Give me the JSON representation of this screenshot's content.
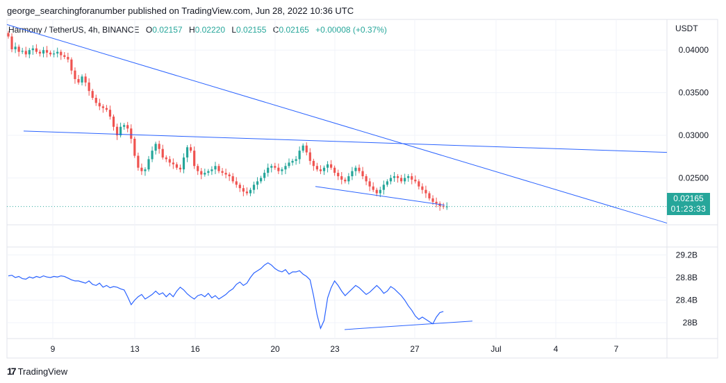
{
  "header": {
    "published": "george_searchingforanumber published on TradingView.com, Jun 28, 2022 10:36 UTC"
  },
  "legend": {
    "symbol": "Harmony / TetherUS, 4h, BINANCE",
    "o_label": "O",
    "o_value": "0.02157",
    "h_label": "H",
    "h_value": "0.02220",
    "l_label": "L",
    "l_value": "0.02155",
    "c_label": "C",
    "c_value": "0.02165",
    "change": "+0.00008 (+0.37%)"
  },
  "price_badge": {
    "price": "0.02165",
    "countdown": "01:23:33"
  },
  "footer": {
    "brand": "TradingView"
  },
  "colors": {
    "up": "#26a69a",
    "down": "#ef5350",
    "line": "#2962ff",
    "grid": "#f0f3fa"
  },
  "chart_data": [
    {
      "type": "candlestick",
      "title": "Harmony / TetherUS, 4h, BINANCE",
      "y_axis_unit": "USDT",
      "y_ticks": [
        "0.04000",
        "0.03500",
        "0.03000",
        "0.02500"
      ],
      "ylim": [
        0.0195,
        0.0436
      ],
      "x_ticks": [
        "9",
        "13",
        "16",
        "20",
        "23",
        "27",
        "Jul",
        "4",
        "7"
      ],
      "current_price": 0.02165,
      "closes": [
        0.0416,
        0.0401,
        0.0404,
        0.0398,
        0.0399,
        0.0395,
        0.04,
        0.0402,
        0.0398,
        0.0396,
        0.04,
        0.0397,
        0.0395,
        0.0396,
        0.0398,
        0.0394,
        0.0392,
        0.0389,
        0.0376,
        0.0366,
        0.0362,
        0.0369,
        0.0362,
        0.0352,
        0.0344,
        0.0338,
        0.0334,
        0.0332,
        0.033,
        0.0322,
        0.031,
        0.03,
        0.031,
        0.0312,
        0.0308,
        0.0296,
        0.0276,
        0.0262,
        0.0258,
        0.026,
        0.0272,
        0.0282,
        0.029,
        0.0284,
        0.0274,
        0.0272,
        0.0268,
        0.0266,
        0.0262,
        0.026,
        0.0274,
        0.0286,
        0.0282,
        0.0264,
        0.0258,
        0.0254,
        0.0256,
        0.0258,
        0.026,
        0.0264,
        0.0258,
        0.0256,
        0.0254,
        0.0252,
        0.0246,
        0.0242,
        0.0238,
        0.0234,
        0.0232,
        0.0236,
        0.0242,
        0.0246,
        0.025,
        0.0256,
        0.0262,
        0.0264,
        0.0262,
        0.0258,
        0.026,
        0.0264,
        0.0268,
        0.027,
        0.0272,
        0.0282,
        0.0288,
        0.028,
        0.027,
        0.0264,
        0.026,
        0.0258,
        0.0262,
        0.0266,
        0.0262,
        0.0256,
        0.0252,
        0.0248,
        0.0246,
        0.0252,
        0.0258,
        0.0262,
        0.0258,
        0.0252,
        0.0246,
        0.024,
        0.0236,
        0.0232,
        0.0236,
        0.0242,
        0.0246,
        0.025,
        0.0252,
        0.025,
        0.0246,
        0.025,
        0.0252,
        0.0248,
        0.0246,
        0.024,
        0.0236,
        0.0232,
        0.0226,
        0.0222,
        0.022,
        0.0217,
        0.0216,
        0.02165
      ],
      "trendlines_price": [
        {
          "from": [
            0,
            0.043
          ],
          "to": [
            1,
            0.0197
          ]
        },
        {
          "from": [
            0,
            0.0305
          ],
          "to": [
            1,
            0.028
          ]
        },
        {
          "from": [
            0,
            0.024
          ],
          "to": [
            1,
            0.0218
          ]
        }
      ]
    },
    {
      "type": "line",
      "title": "",
      "y_ticks": [
        "29.2B",
        "28.8B",
        "28.4B",
        "28B"
      ],
      "ylim": [
        27.72,
        29.34
      ],
      "values": [
        28.83,
        28.84,
        28.8,
        28.82,
        28.78,
        28.77,
        28.81,
        28.79,
        28.82,
        28.8,
        28.83,
        28.81,
        28.8,
        28.82,
        28.81,
        28.83,
        28.82,
        28.79,
        28.76,
        28.74,
        28.74,
        28.72,
        28.7,
        28.74,
        28.68,
        28.66,
        28.7,
        28.63,
        28.66,
        28.62,
        28.64,
        28.63,
        28.6,
        28.58,
        28.46,
        28.32,
        28.4,
        28.46,
        28.5,
        28.42,
        28.46,
        28.5,
        28.56,
        28.5,
        28.53,
        28.46,
        28.52,
        28.46,
        28.56,
        28.63,
        28.58,
        28.51,
        28.46,
        28.42,
        28.48,
        28.5,
        28.46,
        28.52,
        28.44,
        28.48,
        28.42,
        28.46,
        28.5,
        28.56,
        28.6,
        28.68,
        28.72,
        28.66,
        28.7,
        28.8,
        28.88,
        28.92,
        28.96,
        29.02,
        29.06,
        29.02,
        28.96,
        28.92,
        28.9,
        28.94,
        28.86,
        28.9,
        28.9,
        28.92,
        28.86,
        28.82,
        28.76,
        28.48,
        28.14,
        27.9,
        28.04,
        28.44,
        28.62,
        28.74,
        28.66,
        28.56,
        28.48,
        28.54,
        28.6,
        28.66,
        28.62,
        28.56,
        28.5,
        28.54,
        28.6,
        28.66,
        28.6,
        28.52,
        28.56,
        28.64,
        28.6,
        28.54,
        28.48,
        28.4,
        28.3,
        28.22,
        28.12,
        28.06,
        28.1,
        28.06,
        28.02,
        27.98,
        28.1,
        28.18,
        28.2
      ],
      "trendlines": [
        {
          "from": [
            0,
            27.88
          ],
          "to": [
            1,
            28.03
          ]
        }
      ]
    }
  ]
}
